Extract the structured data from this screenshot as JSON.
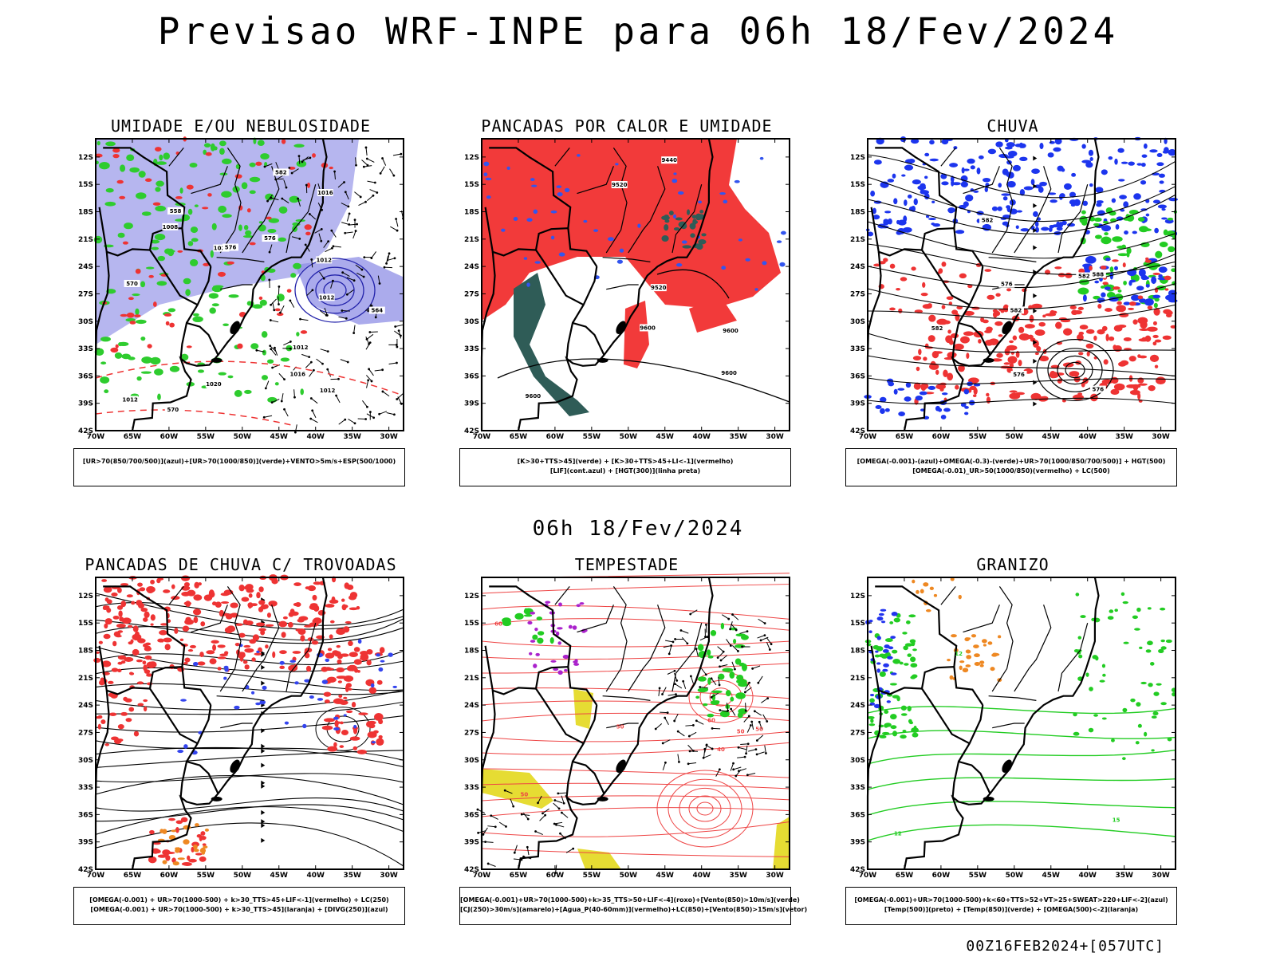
{
  "title": "Previsao WRF-INPE  para 06h 18/Fev/2024",
  "mid_date": "06h 18/Fev/2024",
  "footer_stamp": "00Z16FEB2024+[057UTC]",
  "axes": {
    "lat_labels": [
      "12S",
      "15S",
      "18S",
      "21S",
      "24S",
      "27S",
      "30S",
      "33S",
      "36S",
      "39S",
      "42S"
    ],
    "lon_labels": [
      "70W",
      "65W",
      "60W",
      "55W",
      "50W",
      "45W",
      "40W",
      "35W",
      "30W"
    ]
  },
  "panels": [
    {
      "id": "umidade",
      "title": "UMIDADE E/OU NEBULOSIDADE",
      "legend_lines": [
        "[UR>70(850/700/500)](azul)+[UR>70(1000/850)](verde)+VENTO>5m/s+ESP(500/1000)"
      ],
      "contour_labels": [
        "1012",
        "1012",
        "1012",
        "1012",
        "1008",
        "1020",
        "1016",
        "1020",
        "1016",
        "1012",
        "576",
        "582",
        "576",
        "570",
        "570",
        "564",
        "558"
      ],
      "colors": {
        "azul": "#8f8fe6",
        "verde": "#2ecc2e",
        "vermelho": "#ee3333"
      }
    },
    {
      "id": "pancadas_calor",
      "title": "PANCADAS POR CALOR E UMIDADE",
      "legend_lines": [
        "[K>30+TTS>45](verde) + [K>30+TTS>45+LI<-1](vermelho)",
        "[LIF](cont.azul) + [HGT(300)](linha preta)"
      ],
      "contour_labels": [
        "9600",
        "9600",
        "9520",
        "9600",
        "9520",
        "9440",
        "9600"
      ],
      "colors": {
        "vermelho": "#f23a3a",
        "verde": "#2f5c57",
        "azul": "#3355ee"
      }
    },
    {
      "id": "chuva",
      "title": "CHUVA",
      "legend_lines": [
        "[OMEGA(-0.001)-(azul)+OMEGA(-0.3)-(verde)+UR>70(1000/850/700/500)] + HGT(500)",
        "[OMEGA(-0.01)_UR>50(1000/850)(vermelho) + LC(500)"
      ],
      "contour_labels": [
        "582",
        "576",
        "588",
        "582",
        "576",
        "582",
        "576",
        "582"
      ],
      "colors": {
        "azul": "#1c35ee",
        "verde": "#22cc22",
        "vermelho": "#ee3333"
      }
    },
    {
      "id": "trovoadas",
      "title": "PANCADAS DE CHUVA C/ TROVOADAS",
      "legend_lines": [
        "[OMEGA(-0.001) + UR>70(1000-500) + k>30_TTS>45+LIF<-1](vermelho) + LC(250)",
        "[OMEGA(-0.001) + UR>70(1000-500) + k>30_TTS>45](laranja) + [DIVG(250)](azul)"
      ],
      "colors": {
        "vermelho": "#ee3333",
        "laranja": "#ee8822",
        "azul": "#3344ee"
      }
    },
    {
      "id": "tempestade",
      "title": "TEMPESTADE",
      "legend_lines": [
        "[OMEGA(-0.001)+UR>70(1000-500)+k>35_TTS>50+LIF<-4](roxo)+[Vento(850)>10m/s](verde)",
        "[CJ(250)>30m/s](amarelo)+[Agua_P(40-60mm)](vermelho)+LC(850)+[Vento(850)>15m/s](vetor)"
      ],
      "contour_labels": [
        "50",
        "50",
        "40",
        "60",
        "50",
        "50",
        "60"
      ],
      "colors": {
        "amarelo": "#e6dc33",
        "vermelho": "#ee4444",
        "verde": "#22cc22",
        "roxo": "#aa22cc"
      }
    },
    {
      "id": "granizo",
      "title": "GRANIZO",
      "legend_lines": [
        "[OMEGA(-0.001)+UR>70(1000-500)+k<60+TTS>52+VT>25+SWEAT>220+LIF<-2](azul)",
        "[Temp(500)](preto) + [Temp(850)](verde) + [OMEGA(500)<-2](laranja)"
      ],
      "contour_labels": [
        "15",
        "12",
        "12"
      ],
      "colors": {
        "verde": "#22cc22",
        "laranja": "#ee8822",
        "azul": "#2233ee"
      }
    }
  ]
}
